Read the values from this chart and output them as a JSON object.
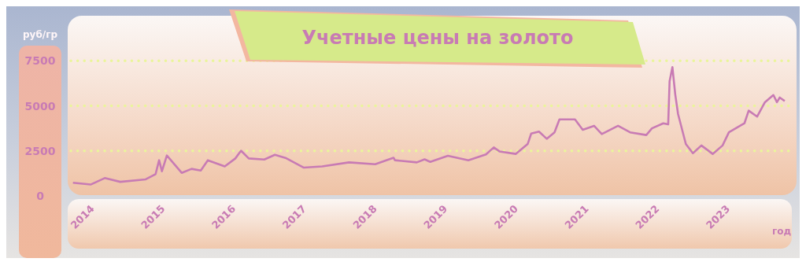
{
  "chart_data": {
    "type": "line",
    "title": "Учетные цены на золото",
    "xlabel": "год",
    "ylabel": "руб/гр",
    "x": [
      2013.83,
      2014.08,
      2014.28,
      2014.5,
      2014.86,
      2015.0,
      2015.05,
      2015.09,
      2015.16,
      2015.37,
      2015.51,
      2015.64,
      2015.74,
      2015.98,
      2016.13,
      2016.21,
      2016.32,
      2016.54,
      2016.69,
      2016.84,
      2017.1,
      2017.36,
      2017.74,
      2018.11,
      2018.37,
      2018.39,
      2018.7,
      2018.81,
      2018.89,
      2019.14,
      2019.43,
      2019.68,
      2019.79,
      2019.87,
      2020.1,
      2020.27,
      2020.32,
      2020.43,
      2020.54,
      2020.65,
      2020.72,
      2020.94,
      2021.05,
      2021.21,
      2021.32,
      2021.55,
      2021.72,
      2021.95,
      2022.03,
      2022.19,
      2022.26,
      2022.28,
      2022.32,
      2022.36,
      2022.4,
      2022.51,
      2022.61,
      2022.73,
      2022.89,
      2023.03,
      2023.12,
      2023.34,
      2023.4,
      2023.52,
      2023.63,
      2023.75,
      2023.8,
      2023.84,
      2023.91
    ],
    "series": [
      {
        "color": "#c87bb4",
        "values": [
          730,
          630,
          990,
          780,
          920,
          1210,
          1980,
          1370,
          2240,
          1280,
          1500,
          1410,
          1980,
          1640,
          2080,
          2510,
          2080,
          2020,
          2280,
          2110,
          1570,
          1640,
          1860,
          1760,
          2120,
          1980,
          1860,
          2030,
          1890,
          2230,
          1980,
          2300,
          2690,
          2470,
          2330,
          2880,
          3460,
          3570,
          3170,
          3530,
          4250,
          4250,
          3670,
          3890,
          3430,
          3890,
          3530,
          3380,
          3750,
          4030,
          3970,
          6360,
          7150,
          5630,
          4540,
          2880,
          2370,
          2800,
          2330,
          2800,
          3530,
          4030,
          4730,
          4400,
          5200,
          5600,
          5200,
          5460,
          5270
        ]
      }
    ],
    "xlim": [
      2013.8,
      2024.0
    ],
    "xticks": [
      2014,
      2015,
      2016,
      2017,
      2018,
      2019,
      2020,
      2021,
      2022,
      2023
    ],
    "ylim": [
      0,
      10000
    ],
    "yticks": [
      0,
      2500,
      5000,
      7500
    ],
    "grid": "y",
    "marker": "none",
    "line_style": "solid"
  }
}
